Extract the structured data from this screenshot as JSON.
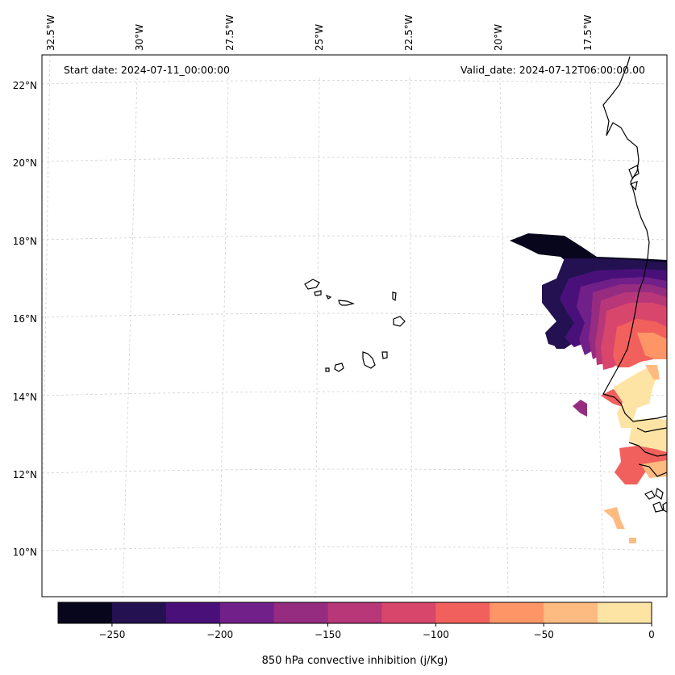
{
  "annotations": {
    "start_date": "Start date: 2024-07-11_00:00:00",
    "valid_date": "Valid_date: 2024-07-12T06:00:00.00"
  },
  "longitude_labels": [
    "32.5°W",
    "30°W",
    "27.5°W",
    "25°W",
    "22.5°W",
    "20°W",
    "17.5°W"
  ],
  "latitude_labels": [
    "22°N",
    "20°N",
    "18°N",
    "16°N",
    "14°N",
    "12°N",
    "10°N"
  ],
  "colorbar": {
    "label": "850 hPa convective inhibition (j/Kg)",
    "tick_labels": [
      "−250",
      "−200",
      "−150",
      "−100",
      "−50",
      "0"
    ],
    "colors": [
      "#07061c",
      "#231151",
      "#4a1079",
      "#71208a",
      "#952c80",
      "#b73779",
      "#d9466b",
      "#f1605d",
      "#fd9567",
      "#febb81",
      "#fde4a5"
    ],
    "range": [
      -275,
      0
    ],
    "step": 25
  }
}
